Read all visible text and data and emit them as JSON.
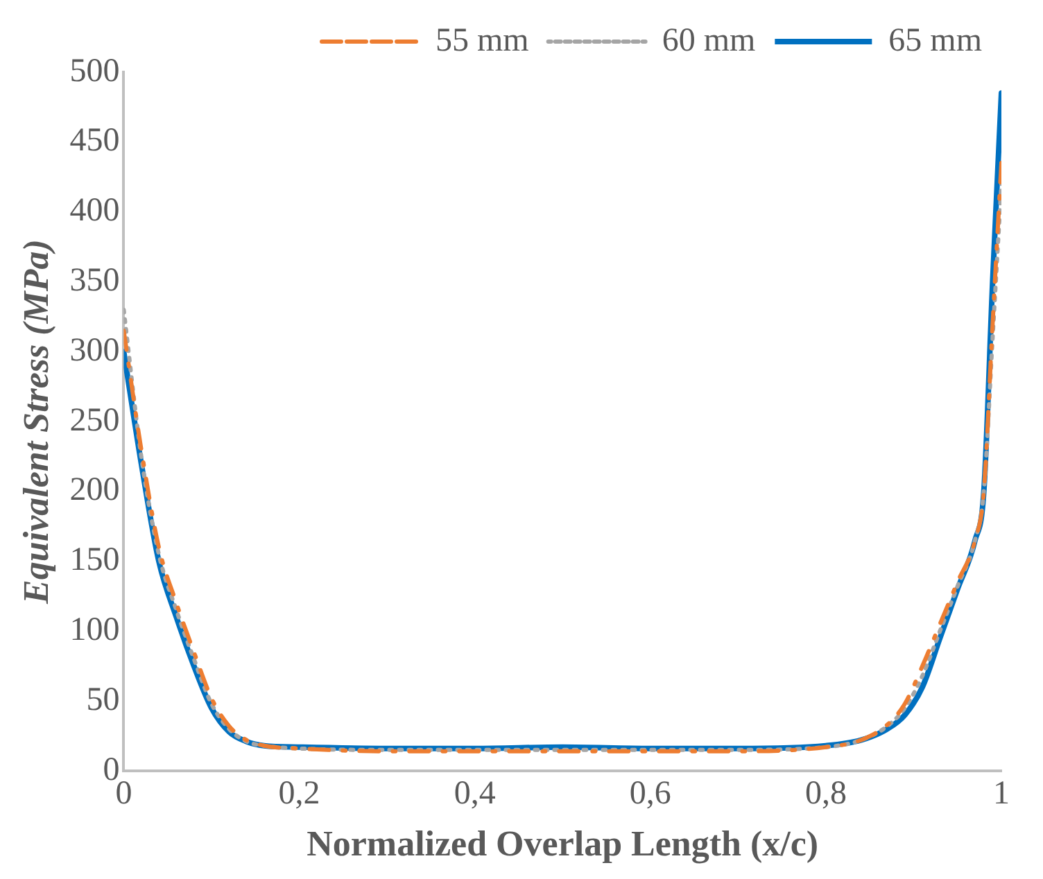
{
  "chart_data": {
    "type": "line",
    "xlabel": "Normalized Overlap Length (x/c)",
    "ylabel": "Equivalent Stress (MPa)",
    "xlim": [
      0,
      1
    ],
    "ylim": [
      0,
      500
    ],
    "xticks": [
      0,
      {
        "value": 0.2,
        "label": "0,2"
      },
      {
        "value": 0.4,
        "label": "0,4"
      },
      {
        "value": 0.6,
        "label": "0,6"
      },
      {
        "value": 0.8,
        "label": "0,8"
      },
      1
    ],
    "yticks": [
      0,
      50,
      100,
      150,
      200,
      250,
      300,
      350,
      400,
      450,
      500
    ],
    "legend": "top",
    "marker": "none",
    "series": [
      {
        "name": "55 mm",
        "color": "#ed7d31",
        "line_style": "dashed",
        "x": [
          0,
          0.02,
          0.04,
          0.06,
          0.08,
          0.1,
          0.12,
          0.14,
          0.16,
          0.2,
          0.3,
          0.4,
          0.5,
          0.6,
          0.7,
          0.8,
          0.84,
          0.87,
          0.89,
          0.91,
          0.93,
          0.95,
          0.97,
          0.98,
          0.99,
          1
        ],
        "values": [
          315,
          230,
          160,
          120,
          85,
          52,
          32,
          22,
          18,
          16,
          14,
          14,
          14,
          14,
          14,
          17,
          22,
          33,
          48,
          75,
          105,
          135,
          165,
          200,
          320,
          435
        ]
      },
      {
        "name": "60 mm",
        "color": "#a5a5a5",
        "line_style": "dotted",
        "x": [
          0,
          0.02,
          0.04,
          0.06,
          0.08,
          0.1,
          0.12,
          0.14,
          0.16,
          0.2,
          0.3,
          0.4,
          0.5,
          0.6,
          0.7,
          0.8,
          0.84,
          0.87,
          0.89,
          0.91,
          0.93,
          0.95,
          0.97,
          0.98,
          0.99,
          1
        ],
        "values": [
          330,
          225,
          155,
          115,
          80,
          48,
          30,
          21,
          18,
          16,
          15,
          15,
          15,
          15,
          15,
          17,
          22,
          32,
          45,
          68,
          100,
          132,
          165,
          200,
          310,
          420
        ]
      },
      {
        "name": "65 mm",
        "color": "#0070c0",
        "line_style": "solid",
        "x": [
          0,
          0.02,
          0.04,
          0.06,
          0.08,
          0.1,
          0.12,
          0.14,
          0.16,
          0.2,
          0.3,
          0.4,
          0.5,
          0.6,
          0.7,
          0.8,
          0.84,
          0.87,
          0.89,
          0.91,
          0.93,
          0.95,
          0.97,
          0.98,
          0.99,
          1
        ],
        "values": [
          300,
          220,
          150,
          110,
          75,
          45,
          28,
          21,
          18,
          17,
          16,
          16,
          17,
          16,
          16,
          18,
          22,
          30,
          40,
          60,
          95,
          130,
          165,
          200,
          350,
          485
        ]
      }
    ]
  }
}
